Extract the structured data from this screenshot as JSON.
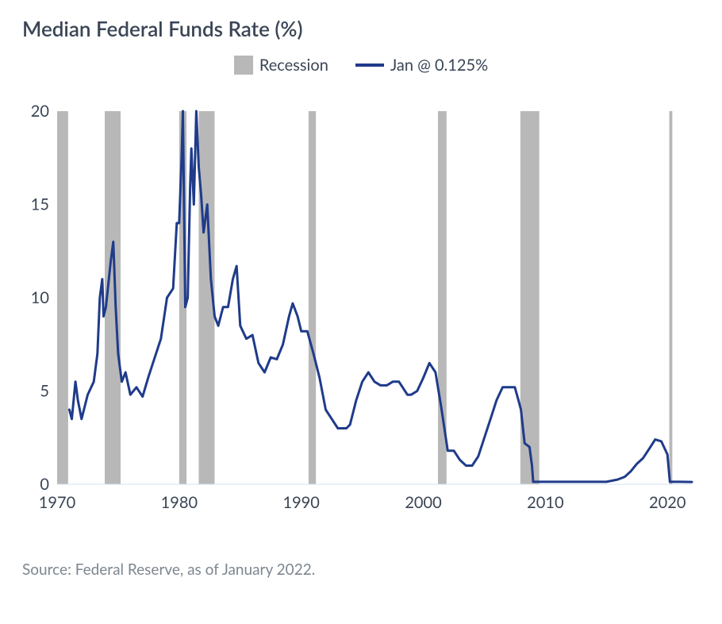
{
  "title": "Median Federal Funds Rate (%)",
  "legend": {
    "recession_label": "Recession",
    "series_label": "Jan @ 0.125%",
    "recession_color": "#b8b8b8",
    "line_color": "#1f3b8a"
  },
  "source": "Source: Federal Reserve, as of January 2022.",
  "chart": {
    "type": "line",
    "background_color": "#ffffff",
    "axis_color": "#3a4555",
    "axis_line_color": "#d6e0f0",
    "line_color": "#1f3b8a",
    "line_width": 3,
    "recession_color": "#b8b8b8",
    "recession_opacity": 1.0,
    "xlim": [
      1970,
      2022
    ],
    "ylim": [
      0,
      20
    ],
    "xtick_step": 10,
    "xticks": [
      1970,
      1980,
      1990,
      2000,
      2010,
      2020
    ],
    "yticks": [
      0,
      5,
      10,
      15,
      20
    ],
    "recessions": [
      {
        "start": 1970.0,
        "end": 1970.9
      },
      {
        "start": 1973.9,
        "end": 1975.2
      },
      {
        "start": 1980.0,
        "end": 1980.6
      },
      {
        "start": 1981.6,
        "end": 1982.9
      },
      {
        "start": 1990.6,
        "end": 1991.2
      },
      {
        "start": 2001.2,
        "end": 2001.9
      },
      {
        "start": 2007.95,
        "end": 2009.5
      },
      {
        "start": 2020.15,
        "end": 2020.4
      }
    ],
    "series": [
      {
        "x": 1971.0,
        "y": 4.0
      },
      {
        "x": 1971.2,
        "y": 3.5
      },
      {
        "x": 1971.5,
        "y": 5.5
      },
      {
        "x": 1971.7,
        "y": 4.5
      },
      {
        "x": 1972.0,
        "y": 3.5
      },
      {
        "x": 1972.5,
        "y": 4.8
      },
      {
        "x": 1973.0,
        "y": 5.5
      },
      {
        "x": 1973.3,
        "y": 7.0
      },
      {
        "x": 1973.5,
        "y": 10.0
      },
      {
        "x": 1973.7,
        "y": 11.0
      },
      {
        "x": 1973.8,
        "y": 9.0
      },
      {
        "x": 1974.0,
        "y": 9.5
      },
      {
        "x": 1974.4,
        "y": 12.0
      },
      {
        "x": 1974.6,
        "y": 13.0
      },
      {
        "x": 1974.8,
        "y": 9.5
      },
      {
        "x": 1975.0,
        "y": 7.0
      },
      {
        "x": 1975.3,
        "y": 5.5
      },
      {
        "x": 1975.6,
        "y": 6.0
      },
      {
        "x": 1976.0,
        "y": 4.8
      },
      {
        "x": 1976.5,
        "y": 5.2
      },
      {
        "x": 1977.0,
        "y": 4.7
      },
      {
        "x": 1977.5,
        "y": 5.8
      },
      {
        "x": 1978.0,
        "y": 6.8
      },
      {
        "x": 1978.5,
        "y": 7.8
      },
      {
        "x": 1979.0,
        "y": 10.0
      },
      {
        "x": 1979.5,
        "y": 10.5
      },
      {
        "x": 1979.8,
        "y": 14.0
      },
      {
        "x": 1980.0,
        "y": 14.0
      },
      {
        "x": 1980.2,
        "y": 17.5
      },
      {
        "x": 1980.3,
        "y": 20.0
      },
      {
        "x": 1980.5,
        "y": 9.5
      },
      {
        "x": 1980.7,
        "y": 10.0
      },
      {
        "x": 1980.9,
        "y": 16.0
      },
      {
        "x": 1981.0,
        "y": 18.0
      },
      {
        "x": 1981.2,
        "y": 15.0
      },
      {
        "x": 1981.4,
        "y": 20.0
      },
      {
        "x": 1981.6,
        "y": 17.0
      },
      {
        "x": 1981.8,
        "y": 15.5
      },
      {
        "x": 1982.0,
        "y": 13.5
      },
      {
        "x": 1982.3,
        "y": 15.0
      },
      {
        "x": 1982.6,
        "y": 11.0
      },
      {
        "x": 1982.9,
        "y": 9.0
      },
      {
        "x": 1983.2,
        "y": 8.5
      },
      {
        "x": 1983.6,
        "y": 9.5
      },
      {
        "x": 1984.0,
        "y": 9.5
      },
      {
        "x": 1984.4,
        "y": 11.0
      },
      {
        "x": 1984.7,
        "y": 11.7
      },
      {
        "x": 1985.0,
        "y": 8.5
      },
      {
        "x": 1985.5,
        "y": 7.8
      },
      {
        "x": 1986.0,
        "y": 8.0
      },
      {
        "x": 1986.5,
        "y": 6.5
      },
      {
        "x": 1987.0,
        "y": 6.0
      },
      {
        "x": 1987.5,
        "y": 6.8
      },
      {
        "x": 1988.0,
        "y": 6.7
      },
      {
        "x": 1988.5,
        "y": 7.5
      },
      {
        "x": 1989.0,
        "y": 9.0
      },
      {
        "x": 1989.3,
        "y": 9.7
      },
      {
        "x": 1989.7,
        "y": 9.0
      },
      {
        "x": 1990.0,
        "y": 8.2
      },
      {
        "x": 1990.5,
        "y": 8.2
      },
      {
        "x": 1991.0,
        "y": 7.0
      },
      {
        "x": 1991.5,
        "y": 5.7
      },
      {
        "x": 1992.0,
        "y": 4.0
      },
      {
        "x": 1992.5,
        "y": 3.5
      },
      {
        "x": 1993.0,
        "y": 3.0
      },
      {
        "x": 1993.7,
        "y": 3.0
      },
      {
        "x": 1994.0,
        "y": 3.2
      },
      {
        "x": 1994.5,
        "y": 4.5
      },
      {
        "x": 1995.0,
        "y": 5.5
      },
      {
        "x": 1995.5,
        "y": 6.0
      },
      {
        "x": 1996.0,
        "y": 5.5
      },
      {
        "x": 1996.5,
        "y": 5.3
      },
      {
        "x": 1997.0,
        "y": 5.3
      },
      {
        "x": 1997.5,
        "y": 5.5
      },
      {
        "x": 1998.0,
        "y": 5.5
      },
      {
        "x": 1998.7,
        "y": 4.8
      },
      {
        "x": 1999.0,
        "y": 4.8
      },
      {
        "x": 1999.5,
        "y": 5.0
      },
      {
        "x": 2000.0,
        "y": 5.7
      },
      {
        "x": 2000.5,
        "y": 6.5
      },
      {
        "x": 2001.0,
        "y": 6.0
      },
      {
        "x": 2001.5,
        "y": 4.0
      },
      {
        "x": 2002.0,
        "y": 1.8
      },
      {
        "x": 2002.5,
        "y": 1.8
      },
      {
        "x": 2003.0,
        "y": 1.3
      },
      {
        "x": 2003.5,
        "y": 1.0
      },
      {
        "x": 2004.0,
        "y": 1.0
      },
      {
        "x": 2004.5,
        "y": 1.5
      },
      {
        "x": 2005.0,
        "y": 2.5
      },
      {
        "x": 2005.5,
        "y": 3.5
      },
      {
        "x": 2006.0,
        "y": 4.5
      },
      {
        "x": 2006.5,
        "y": 5.2
      },
      {
        "x": 2007.0,
        "y": 5.2
      },
      {
        "x": 2007.5,
        "y": 5.2
      },
      {
        "x": 2007.8,
        "y": 4.5
      },
      {
        "x": 2008.0,
        "y": 4.0
      },
      {
        "x": 2008.3,
        "y": 2.2
      },
      {
        "x": 2008.7,
        "y": 2.0
      },
      {
        "x": 2008.9,
        "y": 1.0
      },
      {
        "x": 2009.0,
        "y": 0.13
      },
      {
        "x": 2010.0,
        "y": 0.13
      },
      {
        "x": 2011.0,
        "y": 0.13
      },
      {
        "x": 2012.0,
        "y": 0.13
      },
      {
        "x": 2013.0,
        "y": 0.13
      },
      {
        "x": 2014.0,
        "y": 0.13
      },
      {
        "x": 2015.0,
        "y": 0.13
      },
      {
        "x": 2015.9,
        "y": 0.25
      },
      {
        "x": 2016.5,
        "y": 0.4
      },
      {
        "x": 2017.0,
        "y": 0.7
      },
      {
        "x": 2017.5,
        "y": 1.1
      },
      {
        "x": 2018.0,
        "y": 1.4
      },
      {
        "x": 2018.5,
        "y": 1.9
      },
      {
        "x": 2019.0,
        "y": 2.4
      },
      {
        "x": 2019.5,
        "y": 2.3
      },
      {
        "x": 2020.0,
        "y": 1.6
      },
      {
        "x": 2020.2,
        "y": 0.13
      },
      {
        "x": 2021.0,
        "y": 0.13
      },
      {
        "x": 2022.0,
        "y": 0.125
      }
    ]
  }
}
